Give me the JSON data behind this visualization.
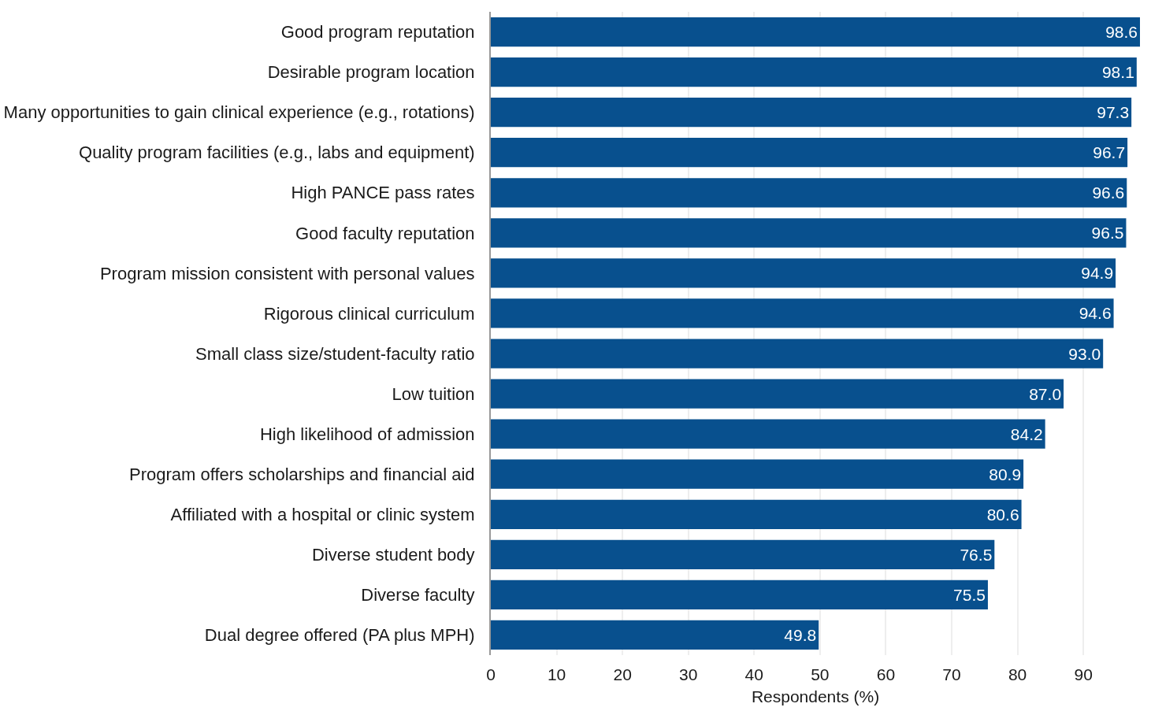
{
  "chart_data": {
    "type": "bar",
    "orientation": "horizontal",
    "xlabel": "Respondents (%)",
    "categories": [
      "Good program reputation",
      "Desirable program location",
      "Many opportunities to gain clinical experience (e.g., rotations)",
      "Quality program facilities (e.g., labs and equipment)",
      "High PANCE pass rates",
      "Good faculty reputation",
      "Program mission consistent with personal values",
      "Rigorous clinical curriculum",
      "Small class size/student-faculty ratio",
      "Low tuition",
      "High likelihood of admission",
      "Program offers scholarships and financial aid",
      "Affiliated with a hospital or clinic system",
      "Diverse student body",
      "Diverse faculty",
      "Dual degree offered (PA plus MPH)"
    ],
    "series": [
      {
        "color": "#08508e",
        "values": [
          98.6,
          98.1,
          97.3,
          96.7,
          96.6,
          96.5,
          94.9,
          94.6,
          93.0,
          87.0,
          84.2,
          80.9,
          80.6,
          76.5,
          75.5,
          49.8
        ],
        "value_labels": [
          "98.6",
          "98.1",
          "97.3",
          "96.7",
          "96.6",
          "96.5",
          "94.9",
          "94.6",
          "93.0",
          "87.0",
          "84.2",
          "80.9",
          "80.6",
          "76.5",
          "75.5",
          "49.8"
        ]
      }
    ],
    "xlim": [
      0,
      98.6
    ],
    "xticks": [
      0,
      10,
      20,
      30,
      40,
      50,
      60,
      70,
      80,
      90
    ],
    "grid": "x"
  }
}
